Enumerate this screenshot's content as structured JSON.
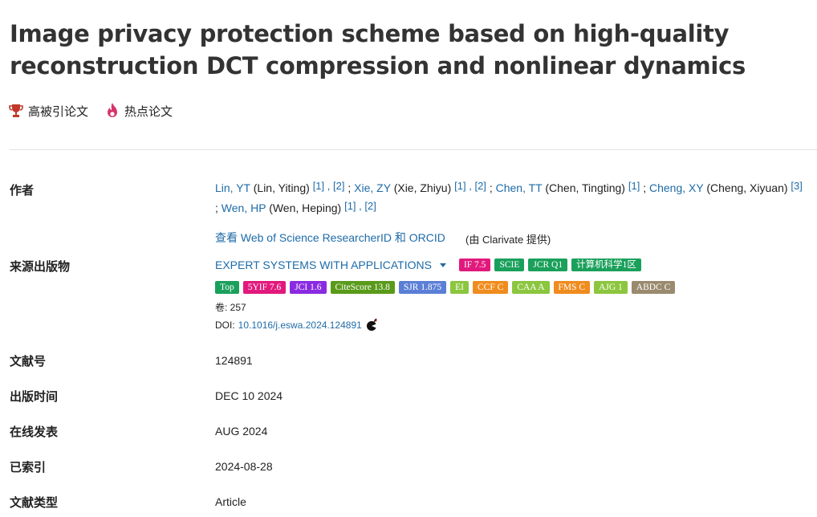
{
  "title": "Image privacy protection scheme based on high-quality reconstruction DCT compression and nonlinear dynamics",
  "flags": {
    "highly_cited": "高被引论文",
    "hot_paper": "热点论文"
  },
  "labels": {
    "authors": "作者",
    "source": "来源出版物",
    "article_number": "文献号",
    "published": "出版时间",
    "early_access": "在线发表",
    "indexed": "已索引",
    "doc_type": "文献类型"
  },
  "authors": [
    {
      "short": "Lin, YT",
      "full": "(Lin, Yiting)",
      "refs": [
        "[1]",
        "[2]"
      ]
    },
    {
      "short": "Xie, ZY",
      "full": "(Xie, Zhiyu)",
      "refs": [
        "[1]",
        "[2]"
      ]
    },
    {
      "short": "Chen, TT",
      "full": "(Chen, Tingting)",
      "refs": [
        "[1]"
      ]
    },
    {
      "short": "Cheng, XY",
      "full": "(Cheng, Xiyuan)",
      "refs": [
        "[3]"
      ]
    },
    {
      "short": "Wen, HP",
      "full": "(Wen, Heping)",
      "refs": [
        "[1]",
        "[2]"
      ]
    }
  ],
  "researcher_link": "查看 Web of Science ResearcherID 和 ORCID",
  "clarivate_note": "(由 Clarivate 提供)",
  "journal": {
    "name": "EXPERT SYSTEMS WITH APPLICATIONS",
    "volume": "卷: 257",
    "doi_label": "DOI:",
    "doi": "10.1016/j.eswa.2024.124891"
  },
  "badges_row1": [
    {
      "text": "IF 7.5",
      "color": "#e2197c"
    },
    {
      "text": "SCIE",
      "color": "#1aa05b"
    },
    {
      "text": "JCR Q1",
      "color": "#1aa05b"
    },
    {
      "text": "计算机科学1区",
      "color": "#1aa05b"
    }
  ],
  "badges_row2": [
    {
      "text": "Top",
      "color": "#1aa05b"
    },
    {
      "text": "5YIF 7.6",
      "color": "#e2197c"
    },
    {
      "text": "JCI 1.6",
      "color": "#8a2be2"
    },
    {
      "text": "CiteScore 13.8",
      "color": "#5a9a1a"
    },
    {
      "text": "SJR 1.875",
      "color": "#5b7fd6"
    },
    {
      "text": "EI",
      "color": "#8cc63f"
    },
    {
      "text": "CCF C",
      "color": "#f08c1e"
    },
    {
      "text": "CAA A",
      "color": "#8cc63f"
    },
    {
      "text": "FMS C",
      "color": "#f08c1e"
    },
    {
      "text": "AJG 1",
      "color": "#8cc63f"
    },
    {
      "text": "ABDC C",
      "color": "#9a8a6e"
    }
  ],
  "values": {
    "article_number": "124891",
    "published": "DEC 10 2024",
    "early_access": "AUG 2024",
    "indexed": "2024-08-28",
    "doc_type": "Article"
  },
  "colors": {
    "link": "#1e6ba8",
    "trophy": "#c0392b",
    "flame": "#d6336c"
  }
}
